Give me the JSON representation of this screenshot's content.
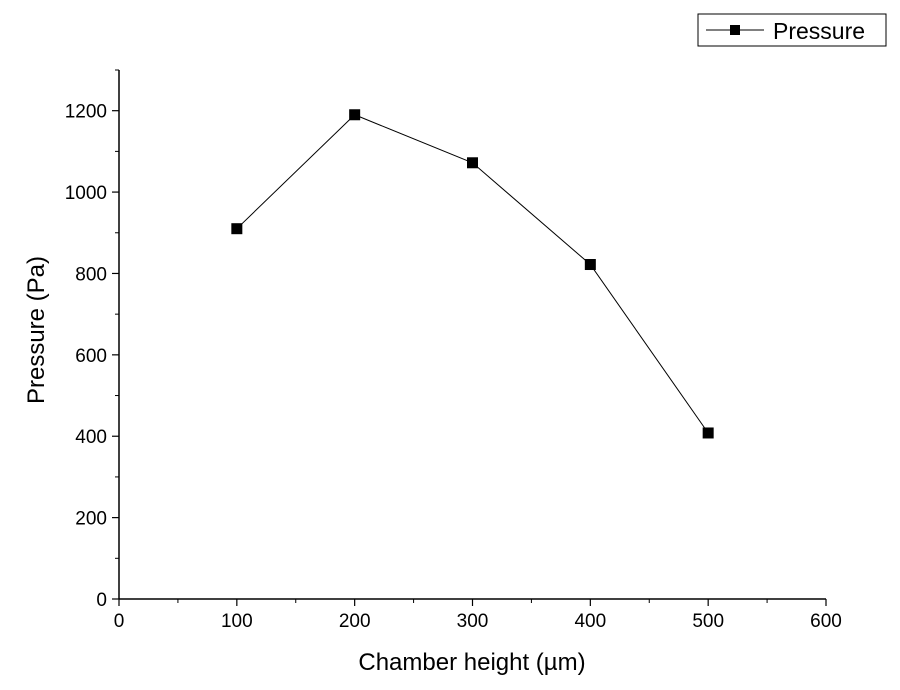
{
  "chart_data": {
    "type": "line",
    "title": "",
    "xlabel": "Chamber height (µm)",
    "ylabel": "Pressure (Pa)",
    "xlim": [
      0,
      600
    ],
    "ylim": [
      0,
      1300
    ],
    "xticks": [
      0,
      100,
      200,
      300,
      400,
      500,
      600
    ],
    "yticks": [
      0,
      200,
      400,
      600,
      800,
      1000,
      1200
    ],
    "x": [
      100,
      200,
      300,
      400,
      500
    ],
    "series": [
      {
        "name": "Pressure",
        "values": [
          910,
          1190,
          1072,
          822,
          408
        ],
        "color": "#000000",
        "marker": "square"
      }
    ],
    "grid": false,
    "legend_position": "top-right"
  }
}
